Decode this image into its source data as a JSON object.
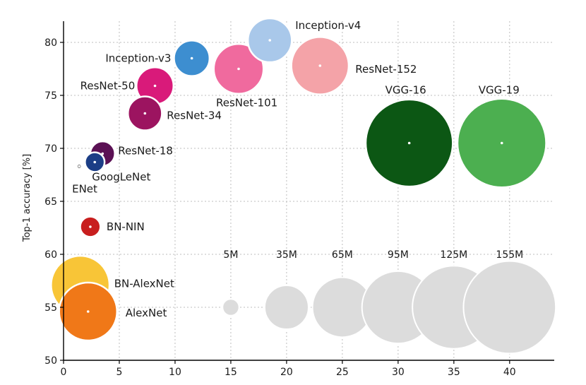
{
  "chart_data": {
    "type": "scatter",
    "variant": "bubble",
    "title": "",
    "xlabel": "",
    "ylabel": "Top-1 accuracy [%]",
    "xlim": [
      0,
      44
    ],
    "ylim": [
      50,
      82
    ],
    "xticks": [
      "0",
      "5",
      "10",
      "15",
      "20",
      "25",
      "30",
      "35",
      "40"
    ],
    "yticks": [
      "50",
      "55",
      "60",
      "65",
      "70",
      "75",
      "80"
    ],
    "grid": true,
    "size_legend": {
      "y": 55,
      "items": [
        {
          "label": "5M",
          "x": 15,
          "params_m": 5
        },
        {
          "label": "35M",
          "x": 20,
          "params_m": 35
        },
        {
          "label": "65M",
          "x": 25,
          "params_m": 65
        },
        {
          "label": "95M",
          "x": 30,
          "params_m": 95
        },
        {
          "label": "125M",
          "x": 35,
          "params_m": 125
        },
        {
          "label": "155M",
          "x": 40,
          "params_m": 155
        }
      ]
    },
    "points": [
      {
        "name": "Inception-v4",
        "x": 18.5,
        "y": 80.2,
        "params_m": 35,
        "color": "#a9c8ea"
      },
      {
        "name": "Inception-v3",
        "x": 11.5,
        "y": 78.5,
        "params_m": 23,
        "color": "#3d8ed0"
      },
      {
        "name": "ResNet-101",
        "x": 15.7,
        "y": 77.5,
        "params_m": 45,
        "color": "#f06a9e"
      },
      {
        "name": "ResNet-152",
        "x": 23.0,
        "y": 77.8,
        "params_m": 60,
        "color": "#f4a3a8"
      },
      {
        "name": "ResNet-50",
        "x": 8.2,
        "y": 75.9,
        "params_m": 25,
        "color": "#d91a7a"
      },
      {
        "name": "ResNet-34",
        "x": 7.3,
        "y": 73.3,
        "params_m": 21,
        "color": "#9c1460"
      },
      {
        "name": "VGG-16",
        "x": 31.0,
        "y": 70.5,
        "params_m": 138,
        "color": "#0c5714"
      },
      {
        "name": "VGG-19",
        "x": 39.3,
        "y": 70.5,
        "params_m": 143,
        "color": "#4caf50"
      },
      {
        "name": "ResNet-18",
        "x": 3.5,
        "y": 69.5,
        "params_m": 11,
        "color": "#5b1154"
      },
      {
        "name": "GoogLeNet",
        "x": 2.8,
        "y": 68.7,
        "params_m": 7,
        "color": "#1c3e86"
      },
      {
        "name": "ENet",
        "x": 1.4,
        "y": 68.3,
        "params_m": 0.4,
        "color": "#111111"
      },
      {
        "name": "BN-NIN",
        "x": 2.4,
        "y": 62.6,
        "params_m": 7.5,
        "color": "#c81e1e"
      },
      {
        "name": "BN-AlexNet",
        "x": 1.5,
        "y": 57.1,
        "params_m": 62,
        "color": "#f8c537"
      },
      {
        "name": "AlexNet",
        "x": 2.2,
        "y": 54.6,
        "params_m": 61,
        "color": "#f07818"
      }
    ],
    "legend_color": "#dcdcdc"
  }
}
